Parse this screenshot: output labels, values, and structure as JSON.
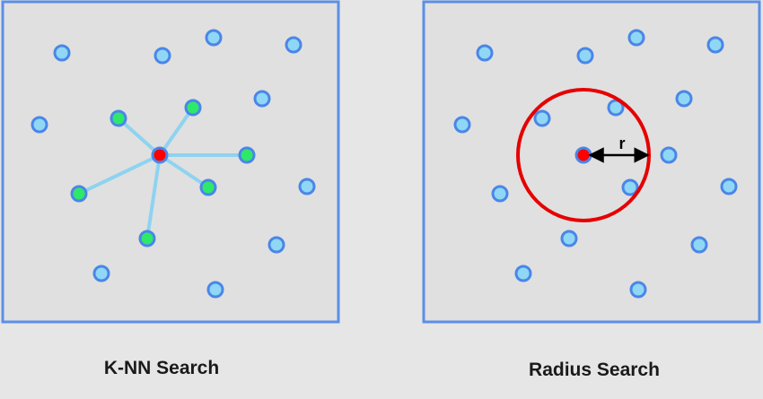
{
  "colors": {
    "background": "#e6e6e6",
    "panel_fill": "#e0e0e0",
    "panel_border": "#5b8fe8",
    "point_fill": "#8fd7f5",
    "point_stroke": "#4a86e8",
    "neighbor_fill": "#2ee86a",
    "query_fill": "#ff0000",
    "edge": "#8ed3f0",
    "radius_circle": "#e60000",
    "arrow": "#000000"
  },
  "knn": {
    "caption": "K-NN Search"
  },
  "radius": {
    "caption": "Radius Search",
    "radius_label": "r"
  }
}
